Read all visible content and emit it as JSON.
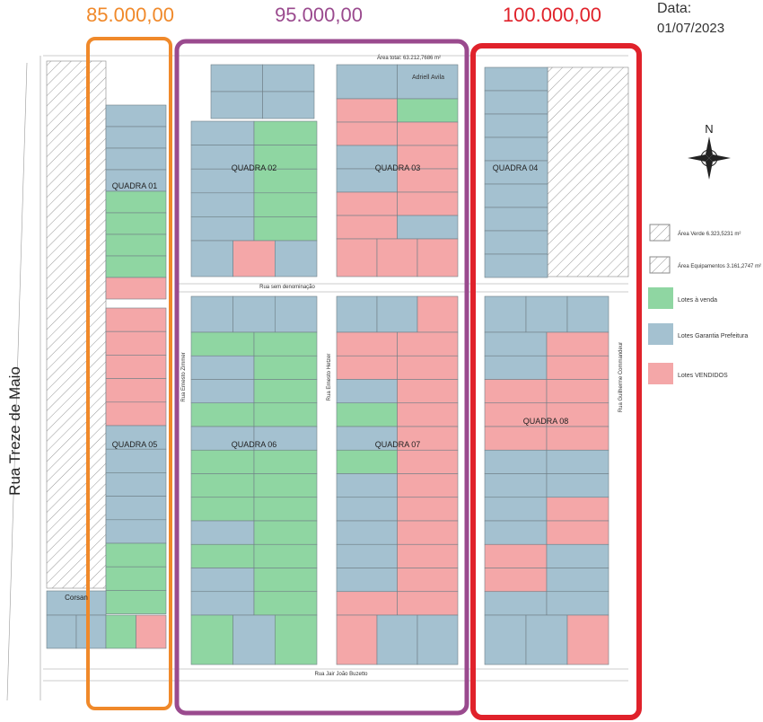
{
  "prices": [
    "85.000,00",
    "95.000,00",
    "100.000,00"
  ],
  "date": {
    "label": "Data:",
    "value": "01/07/2023"
  },
  "area_total": "Área total: 63.212,7686 m²",
  "streets": {
    "main": "Rua Treze de Maio",
    "middle": "Rua sem denominação",
    "bottom": "Rua Jair João Buzetto",
    "col1": "Rua Ernesto Zimmer",
    "col2": "Rua Ernesto Hetzer",
    "col3": "Rua Guilherme Commandeur"
  },
  "blocks": [
    "QUADRA 01",
    "QUADRA 02",
    "QUADRA 03",
    "QUADRA 04",
    "QUADRA 05",
    "QUADRA 06",
    "QUADRA 07",
    "QUADRA 08"
  ],
  "owners": [
    "Corsan",
    "Adriell Avila"
  ],
  "compass": "N",
  "legend": [
    "Área Verde 6.323,5231 m²",
    "Área Equipamentos 3.161,2747 m²",
    "Lotes à venda",
    "Lotes Garantia Prefeitura",
    "Lotes VENDIDOS"
  ]
}
